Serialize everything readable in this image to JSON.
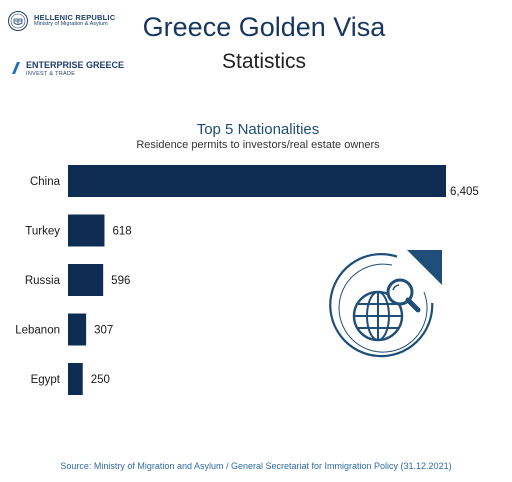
{
  "header": {
    "ministry_name": "HELLENIC REPUBLIC",
    "ministry_sub": "Ministry of Migration & Asylum",
    "agency_name": "ENTERPRISE GREECE",
    "agency_sub": "INVEST & TRADE",
    "title": "Greece Golden Visa",
    "subtitle": "Statistics"
  },
  "chart_data": {
    "type": "bar",
    "orientation": "horizontal",
    "title": "Top 5 Nationalities",
    "subtitle": "Residence permits to investors/real estate owners",
    "categories": [
      "China",
      "Turkey",
      "Russia",
      "Lebanon",
      "Egypt"
    ],
    "values": [
      6405,
      618,
      596,
      307,
      250
    ],
    "value_labels": [
      "6,405",
      "618",
      "596",
      "307",
      "250"
    ],
    "bar_color": "#0f2d52",
    "xlim": [
      0,
      6405
    ],
    "grid": false,
    "legend": "none"
  },
  "illustration": {
    "icon": "globe-search-icon",
    "color": "#1f4e79"
  },
  "footer": {
    "source": "Source: Ministry of Migration and Asylum / General Secretariat for Immigration Policy (31.12.2021)"
  },
  "colors": {
    "navy": "#0f2d52",
    "title_blue": "#1f4e79",
    "source_blue": "#2e6da4"
  }
}
